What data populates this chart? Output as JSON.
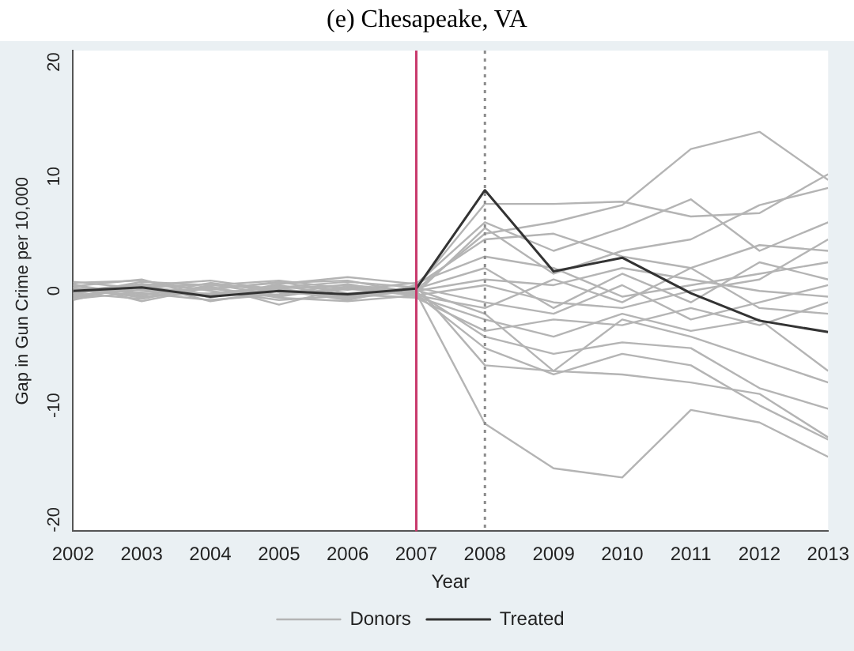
{
  "chart_data": {
    "type": "line",
    "title": "(e) Chesapeake, VA",
    "xlabel": "Year",
    "ylabel": "Gap in Gun Crime per 10,000",
    "x": [
      2002,
      2003,
      2004,
      2005,
      2006,
      2007,
      2008,
      2009,
      2010,
      2011,
      2012,
      2013
    ],
    "xlim": [
      2002,
      2013
    ],
    "xticks": [
      2002,
      2003,
      2004,
      2005,
      2006,
      2007,
      2008,
      2009,
      2010,
      2011,
      2012,
      2013
    ],
    "ylim": [
      -21,
      21
    ],
    "yticks": [
      -20,
      -10,
      0,
      10,
      20
    ],
    "grid": false,
    "legend": "bottom",
    "marker": "none",
    "line_style": "solid",
    "ref_lines": [
      {
        "axis": "x",
        "value": 2007,
        "color": "#c8386b",
        "line_style": "solid"
      },
      {
        "axis": "x",
        "value": 2008,
        "color": "#8c8c8c",
        "line_style": "dotted"
      }
    ],
    "series": [
      {
        "name": "Donors",
        "color": "#b4b4b4",
        "values": [
          0.5,
          -0.3,
          0.2,
          -0.5,
          0.4,
          -0.2,
          -11.6,
          -15.5,
          -16.3,
          -10.4,
          -11.5,
          -14.5
        ]
      },
      {
        "color": "#b4b4b4",
        "values": [
          -0.3,
          0.8,
          0.5,
          0.2,
          -0.6,
          0.1,
          5.0,
          6.0,
          7.5,
          12.4,
          13.9,
          9.7
        ]
      },
      {
        "color": "#b4b4b4",
        "values": [
          0.2,
          -0.5,
          -0.2,
          0.3,
          0.8,
          0.3,
          7.6,
          7.6,
          7.8,
          6.5,
          6.8,
          10.2
        ]
      },
      {
        "color": "#b4b4b4",
        "values": [
          -0.6,
          0.3,
          0.6,
          -0.4,
          0.2,
          -0.3,
          -5.0,
          -7.3,
          -5.5,
          -6.5,
          -10.0,
          -13.0
        ]
      },
      {
        "color": "#b4b4b4",
        "values": [
          0.8,
          0.2,
          -0.4,
          0.5,
          -0.5,
          0.4,
          -6.5,
          -7.0,
          -7.3,
          -8.0,
          -9.0,
          -12.8
        ]
      },
      {
        "color": "#b4b4b4",
        "values": [
          -0.2,
          -0.7,
          0.4,
          -1.2,
          0.3,
          -0.1,
          -4.0,
          -5.5,
          -4.5,
          -5.0,
          -8.5,
          -10.3
        ]
      },
      {
        "color": "#b4b4b4",
        "values": [
          0.4,
          1.0,
          -0.6,
          0.6,
          1.2,
          0.6,
          6.0,
          3.5,
          5.5,
          8.0,
          3.5,
          6.0
        ]
      },
      {
        "color": "#b4b4b4",
        "values": [
          -0.5,
          0.5,
          0.9,
          0.1,
          -0.8,
          0.5,
          4.5,
          5.0,
          3.0,
          2.0,
          4.0,
          3.5
        ]
      },
      {
        "color": "#b4b4b4",
        "values": [
          0.3,
          -0.2,
          -0.8,
          -0.3,
          0.6,
          -0.5,
          -2.5,
          -4.0,
          -2.0,
          -3.5,
          -2.5,
          -7.0
        ]
      },
      {
        "color": "#b4b4b4",
        "values": [
          -0.8,
          0.6,
          0.1,
          0.8,
          -0.2,
          0.2,
          2.0,
          -1.5,
          1.5,
          -1.0,
          2.5,
          1.0
        ]
      },
      {
        "color": "#b4b4b4",
        "values": [
          0.6,
          -0.9,
          0.3,
          -0.6,
          -0.9,
          -0.4,
          -1.5,
          1.0,
          -1.0,
          2.0,
          -1.5,
          -2.0
        ]
      },
      {
        "color": "#b4b4b4",
        "values": [
          -0.1,
          0.4,
          -0.3,
          0.4,
          0.1,
          0.7,
          3.0,
          2.0,
          -0.5,
          0.5,
          1.5,
          2.5
        ]
      },
      {
        "color": "#b4b4b4",
        "values": [
          0.1,
          -0.4,
          0.7,
          -0.1,
          -0.3,
          -0.6,
          -3.5,
          -2.5,
          -3.0,
          -1.5,
          -3.0,
          -1.0
        ]
      },
      {
        "color": "#b4b4b4",
        "values": [
          -0.4,
          0.1,
          -0.5,
          0.2,
          0.5,
          0.0,
          1.0,
          0.5,
          2.0,
          1.0,
          0.0,
          -0.5
        ]
      },
      {
        "color": "#b4b4b4",
        "values": [
          0.7,
          0.9,
          0.0,
          -0.8,
          -0.4,
          0.3,
          -1.0,
          -2.0,
          0.5,
          -2.5,
          -1.0,
          0.5
        ]
      },
      {
        "color": "#b4b4b4",
        "values": [
          -0.7,
          -0.1,
          0.2,
          0.7,
          0.9,
          -0.2,
          5.5,
          1.5,
          3.5,
          4.5,
          7.5,
          9.0
        ]
      },
      {
        "color": "#b4b4b4",
        "values": [
          0.0,
          0.6,
          -0.9,
          0.0,
          -0.7,
          0.1,
          -2.0,
          -7.0,
          -2.5,
          -4.0,
          -6.0,
          -8.0
        ]
      },
      {
        "color": "#b4b4b4",
        "values": [
          0.3,
          -0.6,
          0.5,
          0.9,
          0.2,
          -0.4,
          0.5,
          -1.0,
          -1.5,
          0.0,
          1.0,
          4.5
        ]
      },
      {
        "name": "Treated",
        "color": "#333333",
        "values": [
          0.0,
          0.3,
          -0.5,
          0.0,
          -0.3,
          0.2,
          8.8,
          1.7,
          2.9,
          -0.2,
          -2.6,
          -3.6
        ]
      }
    ]
  }
}
